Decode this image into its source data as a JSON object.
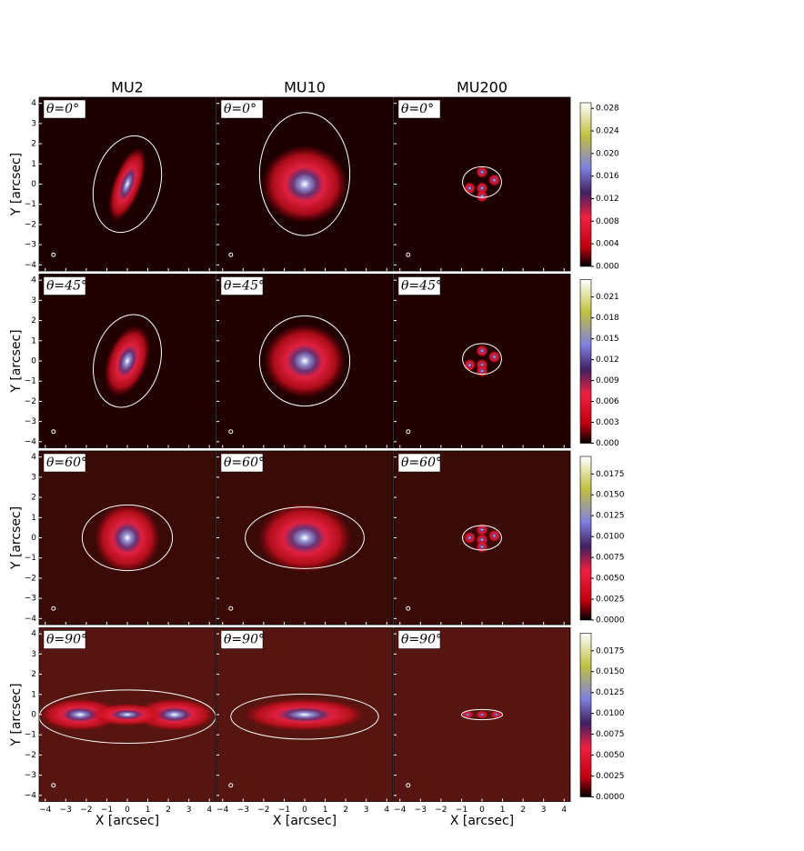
{
  "figure": {
    "columns": [
      "MU2",
      "MU10",
      "MU200"
    ],
    "rows": [
      {
        "label": "θ=0°",
        "colorbar": {
          "lim": [
            0,
            0.029
          ],
          "ticks": [
            {
              "value": 0,
              "label": "0.000"
            },
            {
              "value": 0.004,
              "label": "0.004"
            },
            {
              "value": 0.008,
              "label": "0.008"
            },
            {
              "value": 0.012,
              "label": "0.012"
            },
            {
              "value": 0.016,
              "label": "0.016"
            },
            {
              "value": 0.02,
              "label": "0.020"
            },
            {
              "value": 0.024,
              "label": "0.024"
            },
            {
              "value": 0.028,
              "label": "0.028"
            }
          ]
        }
      },
      {
        "label": "θ=45°",
        "colorbar": {
          "lim": [
            0,
            0.0235
          ],
          "ticks": [
            {
              "value": 0,
              "label": "0.000"
            },
            {
              "value": 0.003,
              "label": "0.003"
            },
            {
              "value": 0.006,
              "label": "0.006"
            },
            {
              "value": 0.009,
              "label": "0.009"
            },
            {
              "value": 0.012,
              "label": "0.012"
            },
            {
              "value": 0.015,
              "label": "0.015"
            },
            {
              "value": 0.018,
              "label": "0.018"
            },
            {
              "value": 0.021,
              "label": "0.021"
            }
          ]
        }
      },
      {
        "label": "θ=60°",
        "colorbar": {
          "lim": [
            0,
            0.0196
          ],
          "ticks": [
            {
              "value": 0,
              "label": "0.0000"
            },
            {
              "value": 0.0025,
              "label": "0.0025"
            },
            {
              "value": 0.005,
              "label": "0.0050"
            },
            {
              "value": 0.0075,
              "label": "0.0075"
            },
            {
              "value": 0.01,
              "label": "0.0100"
            },
            {
              "value": 0.0125,
              "label": "0.0125"
            },
            {
              "value": 0.015,
              "label": "0.0150"
            },
            {
              "value": 0.0175,
              "label": "0.0175"
            }
          ]
        }
      },
      {
        "label": "θ=90°",
        "colorbar": {
          "lim": [
            0,
            0.0196
          ],
          "ticks": [
            {
              "value": 0,
              "label": "0.0000"
            },
            {
              "value": 0.0025,
              "label": "0.0025"
            },
            {
              "value": 0.005,
              "label": "0.0050"
            },
            {
              "value": 0.0075,
              "label": "0.0075"
            },
            {
              "value": 0.01,
              "label": "0.0100"
            },
            {
              "value": 0.0125,
              "label": "0.0125"
            },
            {
              "value": 0.015,
              "label": "0.0150"
            },
            {
              "value": 0.0175,
              "label": "0.0175"
            }
          ]
        }
      }
    ],
    "xlabel": "X [arcsec]",
    "ylabel": "Y [arcsec]",
    "xlim": [
      -4.3,
      4.3
    ],
    "ylim": [
      -4.3,
      4.3
    ],
    "xticks": [
      {
        "value": -4,
        "label": "−4"
      },
      {
        "value": -3,
        "label": "−3"
      },
      {
        "value": -2,
        "label": "−2"
      },
      {
        "value": -1,
        "label": "−1"
      },
      0,
      1,
      2,
      3,
      4
    ],
    "yticks": [
      {
        "value": -4,
        "label": "−4"
      },
      {
        "value": -3,
        "label": "−3"
      },
      {
        "value": -2,
        "label": "−2"
      },
      {
        "value": -1,
        "label": "−1"
      },
      0,
      1,
      2,
      3,
      4
    ]
  }
}
